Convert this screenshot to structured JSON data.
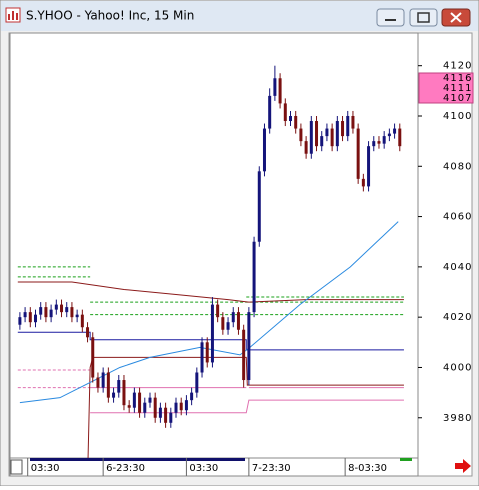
{
  "window_title": "S.YHOO - Yahoo! Inc, 15 Min",
  "chart_data": {
    "type": "candlestick",
    "open": [
      4017,
      4020,
      4022,
      4018,
      4021,
      4024,
      4020,
      4023,
      4025,
      4022,
      4024,
      4020,
      4021,
      4016,
      4012,
      3996,
      3992,
      3998,
      3988,
      3990,
      3995,
      3985,
      3984,
      3990,
      3982,
      3986,
      3988,
      3980,
      3984,
      3978,
      3982,
      3986,
      3983,
      3987,
      3990,
      3998,
      4010,
      4002,
      4025,
      4020,
      4015,
      4018,
      4022,
      4015,
      3995,
      4022,
      4050,
      4078,
      4095,
      4108,
      4115,
      4105,
      4098,
      4100,
      4095,
      4090,
      4085,
      4098,
      4088,
      4092,
      4095,
      4088,
      4098,
      4092,
      4100,
      4095,
      4075,
      4072,
      4088,
      4090,
      4089,
      4092,
      4093,
      4095
    ],
    "high": [
      4022,
      4024,
      4024,
      4023,
      4026,
      4026,
      4025,
      4027,
      4027,
      4026,
      4026,
      4023,
      4023,
      4018,
      4014,
      3998,
      4000,
      4000,
      3992,
      3997,
      3997,
      3987,
      3992,
      3992,
      3988,
      3990,
      3990,
      3986,
      3986,
      3984,
      3988,
      3988,
      3989,
      3992,
      4000,
      4012,
      4012,
      4028,
      4027,
      4022,
      4020,
      4024,
      4024,
      4017,
      4024,
      4052,
      4080,
      4097,
      4111,
      4120,
      4117,
      4107,
      4102,
      4102,
      4097,
      4092,
      4100,
      4100,
      4094,
      4097,
      4097,
      4100,
      4100,
      4102,
      4102,
      4097,
      4077,
      4090,
      4092,
      4092,
      4094,
      4095,
      4097,
      4097
    ],
    "low": [
      4015,
      4018,
      4016,
      4016,
      4019,
      4018,
      4018,
      4021,
      4020,
      4020,
      4018,
      4018,
      4014,
      4010,
      3994,
      3990,
      3990,
      3986,
      3986,
      3988,
      3983,
      3982,
      3982,
      3980,
      3980,
      3984,
      3978,
      3978,
      3976,
      3976,
      3980,
      3981,
      3981,
      3985,
      3988,
      3996,
      4000,
      4000,
      4018,
      4013,
      4013,
      4016,
      4013,
      3992,
      3993,
      4020,
      4048,
      4076,
      4093,
      4106,
      4103,
      4096,
      4096,
      4093,
      4088,
      4083,
      4083,
      4086,
      4086,
      4090,
      4086,
      4086,
      4090,
      4090,
      4093,
      4073,
      4070,
      4070,
      4086,
      4087,
      4087,
      4090,
      4091,
      4086
    ],
    "close": [
      4020,
      4022,
      4018,
      4021,
      4024,
      4020,
      4023,
      4025,
      4022,
      4024,
      4020,
      4021,
      4016,
      4012,
      3996,
      3992,
      3998,
      3988,
      3990,
      3995,
      3985,
      3984,
      3990,
      3982,
      3986,
      3988,
      3980,
      3984,
      3978,
      3982,
      3986,
      3983,
      3987,
      3990,
      3998,
      4010,
      4002,
      4025,
      4020,
      4015,
      4018,
      4022,
      4015,
      3995,
      4022,
      4050,
      4078,
      4095,
      4108,
      4115,
      4105,
      4098,
      4100,
      4095,
      4090,
      4085,
      4098,
      4088,
      4092,
      4095,
      4088,
      4098,
      4092,
      4100,
      4095,
      4075,
      4072,
      4088,
      4090,
      4089,
      4092,
      4093,
      4095,
      4088
    ],
    "up_color": "#14147a",
    "down_color": "#7a1010",
    "overlays": [
      {
        "color": "#1aa01a",
        "dashed": true,
        "x": [
          -0.4,
          13.5
        ],
        "values": [
          4040,
          4040
        ]
      },
      {
        "color": "#1aa01a",
        "dashed": true,
        "x": [
          -0.4,
          13.5
        ],
        "values": [
          4036,
          4036
        ]
      },
      {
        "color": "#1aa01a",
        "dashed": true,
        "x": [
          13.5,
          73.8
        ],
        "values": [
          4026,
          4026
        ]
      },
      {
        "color": "#1aa01a",
        "dashed": true,
        "x": [
          13.5,
          73.8
        ],
        "values": [
          4021,
          4021
        ]
      },
      {
        "color": "#1aa01a",
        "dashed": true,
        "x": [
          43.5,
          73.8
        ],
        "values": [
          4028,
          4028
        ]
      },
      {
        "color": "#e070b0",
        "dashed": true,
        "x": [
          -0.4,
          13.5
        ],
        "values": [
          3999,
          3999
        ]
      },
      {
        "color": "#e070b0",
        "dashed": true,
        "x": [
          -0.4,
          13.5
        ],
        "values": [
          3992,
          3992
        ]
      },
      {
        "color": "#e070b0",
        "dashed": false,
        "x": [
          13.5,
          43.5
        ],
        "values": [
          3992,
          3992
        ]
      },
      {
        "color": "#e070b0",
        "dashed": false,
        "x": [
          13.5,
          43.5,
          44,
          73.8
        ],
        "values": [
          3982,
          3982,
          3987,
          3987
        ]
      },
      {
        "color": "#e070b0",
        "dashed": false,
        "x": [
          44,
          73.8
        ],
        "values": [
          3992,
          3992
        ]
      },
      {
        "color": "#1a1aa0",
        "dashed": false,
        "x": [
          -0.4,
          13.5,
          13.5,
          43.5,
          43.5,
          73.8
        ],
        "values": [
          4014,
          4014,
          4011,
          4011,
          4007,
          4007
        ]
      },
      {
        "color": "#8b1a1a",
        "dashed": false,
        "x": [
          -0.4,
          10,
          20,
          30,
          40,
          44,
          55,
          73.8
        ],
        "values": [
          4034,
          4034,
          4031,
          4029,
          4027,
          4026,
          4027,
          4027
        ]
      },
      {
        "color": "#8b1a1a",
        "dashed": false,
        "x": [
          13.1,
          13.5,
          14,
          43.5,
          43.7,
          73.8
        ],
        "values": [
          3964,
          4000,
          4004,
          4004,
          3993,
          3993
        ]
      },
      {
        "color": "#2a8ae0",
        "dashed": false,
        "x": [
          0,
          7.7,
          12.5,
          19.2,
          25,
          34.6,
          42.3,
          44.2,
          53.8,
          63.5,
          72.7
        ],
        "values": [
          3986,
          3988,
          3993,
          4000,
          4004,
          4008,
          4005,
          4008,
          4025,
          4040,
          4058
        ]
      }
    ],
    "xlim": [
      -1.9,
      76.5
    ],
    "xticks": [
      {
        "value": 1.5,
        "label": "03:30"
      },
      {
        "value": 16,
        "label": "6-23:30"
      },
      {
        "value": 32,
        "label": "03:30"
      },
      {
        "value": 44,
        "label": "7-23:30"
      },
      {
        "value": 62.5,
        "label": "8-03:30"
      }
    ],
    "ylim": [
      3964,
      4133
    ],
    "yticks": [
      3980,
      4000,
      4020,
      4040,
      4060,
      4080,
      4100,
      4120
    ],
    "price_tags": [
      4116,
      4111,
      4107
    ]
  }
}
